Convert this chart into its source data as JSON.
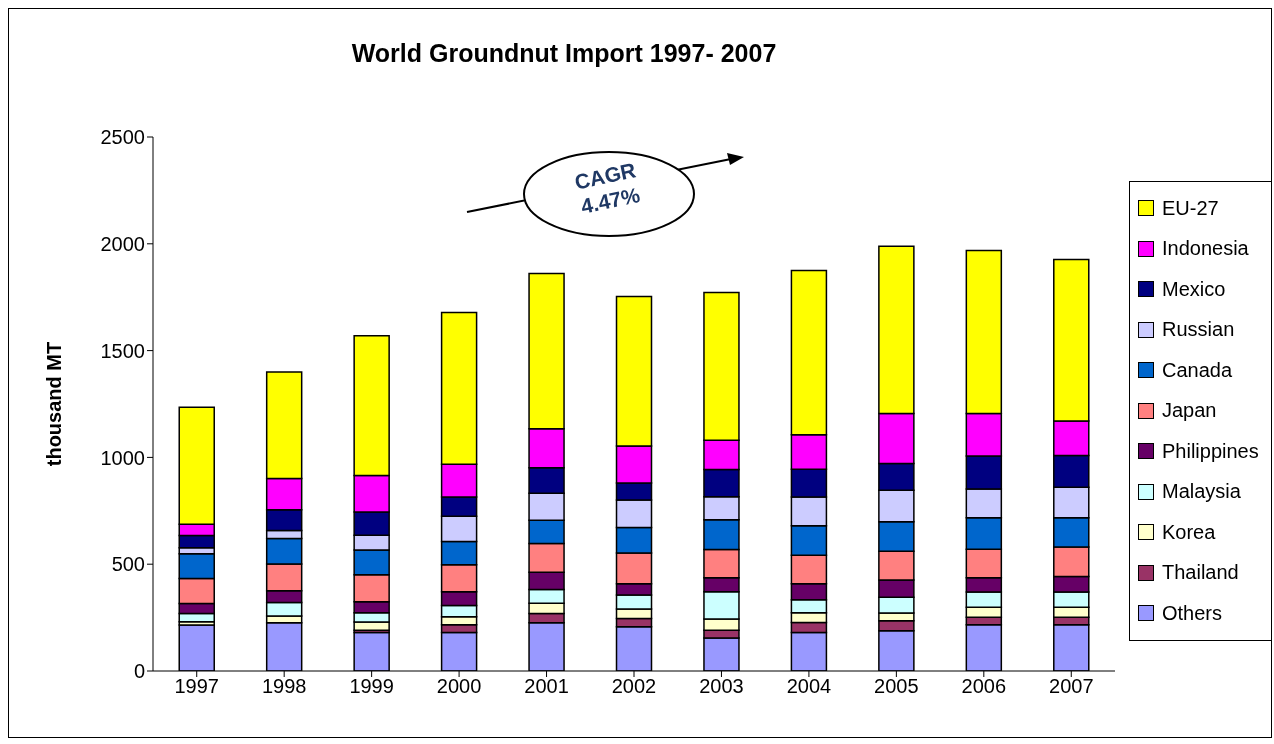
{
  "chart_data": {
    "type": "bar",
    "title": "World Groundnut Import 1997- 2007",
    "ylabel": "thousand MT",
    "categories": [
      "1997",
      "1998",
      "1999",
      "2000",
      "2001",
      "2002",
      "2003",
      "2004",
      "2005",
      "2006",
      "2007"
    ],
    "stacked": true,
    "ylim": [
      0,
      2500
    ],
    "yticks": [
      0,
      500,
      1000,
      1500,
      2000,
      2500
    ],
    "legend": "right",
    "annotations": [
      "CAGR 4.47%"
    ],
    "series": [
      {
        "name": "Others",
        "color": "#9999ff",
        "values": [
          215,
          226,
          180,
          180,
          226,
          207,
          154,
          180,
          188,
          216,
          216
        ]
      },
      {
        "name": "Thailand",
        "color": "#993366",
        "values": [
          null,
          null,
          11,
          36,
          43,
          39,
          37,
          47,
          47,
          36,
          36
        ]
      },
      {
        "name": "Korea",
        "color": "#ffffcc",
        "values": [
          15,
          31,
          38,
          38,
          48,
          44,
          53,
          46,
          36,
          46,
          46
        ]
      },
      {
        "name": "Malaysia",
        "color": "#ccffff",
        "values": [
          39,
          64,
          44,
          53,
          64,
          66,
          127,
          61,
          74,
          72,
          72
        ]
      },
      {
        "name": "Philippines",
        "color": "#660066",
        "values": [
          47,
          55,
          51,
          64,
          81,
          53,
          65,
          75,
          81,
          67,
          73
        ]
      },
      {
        "name": "Japan",
        "color": "#ff8080",
        "values": [
          117,
          125,
          127,
          127,
          135,
          144,
          133,
          133,
          135,
          133,
          137
        ]
      },
      {
        "name": "Canada",
        "color": "#0066cc",
        "values": [
          116,
          119,
          116,
          108,
          109,
          119,
          139,
          138,
          138,
          148,
          138
        ]
      },
      {
        "name": "Russian",
        "color": "#ccccff",
        "values": [
          28,
          38,
          68,
          118,
          126,
          128,
          108,
          135,
          147,
          134,
          142
        ]
      },
      {
        "name": "Mexico",
        "color": "#000080",
        "values": [
          57,
          97,
          109,
          91,
          119,
          80,
          127,
          130,
          125,
          154,
          149
        ]
      },
      {
        "name": "Indonesia",
        "color": "#ff00ff",
        "values": [
          53,
          146,
          171,
          153,
          183,
          173,
          137,
          161,
          234,
          199,
          161
        ]
      },
      {
        "name": "EU-27",
        "color": "#ffff00",
        "values": [
          548,
          499,
          655,
          710,
          727,
          700,
          692,
          769,
          783,
          764,
          757
        ]
      }
    ]
  }
}
